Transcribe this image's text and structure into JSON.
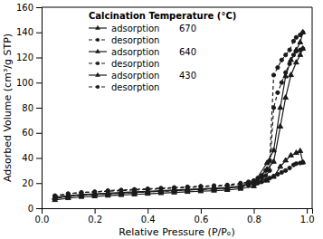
{
  "chart_data": {
    "type": "line",
    "title": "Calcination Temperature (°C)",
    "xlabel": "Relative Pressure (P/Pₒ)",
    "ylabel": "Adsorbed Volume (cm³/g STP)",
    "xlim": [
      0.0,
      1.02
    ],
    "ylim": [
      0,
      160
    ],
    "xticks": [
      {
        "value": 0.0,
        "label": "0.0"
      },
      0.2,
      0.4,
      0.6,
      0.8,
      {
        "value": 1.0,
        "label": "1.0"
      }
    ],
    "yticks": [
      0,
      20,
      40,
      60,
      80,
      100,
      120,
      140,
      160
    ],
    "grid": false,
    "legend": "upper left",
    "series": [
      {
        "name": "adsorption",
        "group": "670",
        "color": "#1a1a1a",
        "line_style": "solid",
        "marker": "triangle",
        "x": [
          0.05,
          0.1,
          0.15,
          0.2,
          0.25,
          0.3,
          0.35,
          0.4,
          0.45,
          0.5,
          0.55,
          0.6,
          0.65,
          0.7,
          0.75,
          0.8,
          0.85,
          0.875,
          0.9,
          0.92,
          0.94,
          0.96,
          0.975,
          0.985
        ],
        "values": [
          8.0,
          9.5,
          10.5,
          11.0,
          11.5,
          12.0,
          12.5,
          13.0,
          13.5,
          14.0,
          14.5,
          15.0,
          15.5,
          16.0,
          17.0,
          20.0,
          36.0,
          46.0,
          80.0,
          105.0,
          118.0,
          126.0,
          132.0,
          140.0
        ]
      },
      {
        "name": "desorption",
        "color": "#1a1a1a",
        "line_style": "dashed",
        "marker": "circle",
        "x": [
          0.985,
          0.975,
          0.96,
          0.95,
          0.935,
          0.92,
          0.905,
          0.89,
          0.875,
          0.86,
          0.845,
          0.83,
          0.815,
          0.8,
          0.78,
          0.75,
          0.7,
          0.65,
          0.6,
          0.55,
          0.5,
          0.45,
          0.4,
          0.35,
          0.3,
          0.25,
          0.2,
          0.15,
          0.1,
          0.05
        ],
        "values": [
          140.0,
          138.0,
          136.0,
          133.0,
          126.0,
          122.0,
          118.0,
          112.0,
          106.0,
          38.0,
          30.0,
          26.0,
          24.0,
          22.0,
          21.0,
          20.0,
          18.5,
          18.0,
          17.5,
          17.0,
          16.5,
          16.0,
          15.5,
          15.0,
          14.5,
          14.0,
          13.0,
          12.5,
          11.5,
          9.5
        ]
      },
      {
        "name": "adsorption",
        "group": "640",
        "color": "#1a1a1a",
        "line_style": "solid",
        "marker": "triangle",
        "x": [
          0.05,
          0.1,
          0.15,
          0.2,
          0.25,
          0.3,
          0.35,
          0.4,
          0.45,
          0.5,
          0.55,
          0.6,
          0.65,
          0.7,
          0.75,
          0.8,
          0.85,
          0.875,
          0.9,
          0.92,
          0.94,
          0.96,
          0.975,
          0.985
        ],
        "values": [
          8.5,
          10.0,
          11.0,
          11.5,
          12.0,
          12.5,
          13.0,
          13.5,
          14.0,
          14.5,
          15.0,
          15.5,
          16.0,
          16.5,
          17.5,
          21.0,
          31.0,
          37.0,
          65.0,
          88.0,
          106.0,
          116.0,
          122.0,
          127.0
        ]
      },
      {
        "name": "desorption",
        "color": "#1a1a1a",
        "line_style": "dashed",
        "marker": "circle",
        "x": [
          0.985,
          0.975,
          0.96,
          0.95,
          0.935,
          0.92,
          0.905,
          0.89,
          0.875,
          0.86,
          0.845,
          0.83,
          0.815,
          0.8,
          0.78,
          0.75,
          0.7,
          0.65,
          0.6,
          0.55,
          0.5,
          0.45,
          0.4,
          0.35,
          0.3,
          0.25,
          0.2,
          0.15,
          0.1,
          0.05
        ],
        "values": [
          127.0,
          126.0,
          125.0,
          122.0,
          115.0,
          108.0,
          100.0,
          92.0,
          80.0,
          30.0,
          26.0,
          24.0,
          22.0,
          21.0,
          20.0,
          19.0,
          18.0,
          17.5,
          17.0,
          16.5,
          16.0,
          15.5,
          15.0,
          14.5,
          14.0,
          13.5,
          13.0,
          12.5,
          11.5,
          10.0
        ]
      },
      {
        "name": "adsorption",
        "group": "430",
        "color": "#1a1a1a",
        "line_style": "solid",
        "marker": "triangle",
        "x": [
          0.05,
          0.1,
          0.15,
          0.2,
          0.25,
          0.3,
          0.35,
          0.4,
          0.45,
          0.5,
          0.55,
          0.6,
          0.65,
          0.7,
          0.75,
          0.8,
          0.85,
          0.875,
          0.9,
          0.92,
          0.94,
          0.96,
          0.975,
          0.985
        ],
        "values": [
          6.5,
          8.0,
          9.0,
          9.5,
          10.0,
          10.5,
          11.0,
          11.5,
          12.0,
          12.5,
          13.0,
          13.5,
          14.0,
          14.5,
          15.5,
          17.5,
          22.0,
          25.0,
          33.0,
          38.0,
          42.0,
          44.0,
          45.5,
          36.5
        ]
      },
      {
        "name": "desorption",
        "color": "#1a1a1a",
        "line_style": "dashed",
        "marker": "circle",
        "x": [
          0.985,
          0.975,
          0.96,
          0.95,
          0.935,
          0.92,
          0.905,
          0.89,
          0.875,
          0.86,
          0.845,
          0.83,
          0.815,
          0.8,
          0.78,
          0.75,
          0.7,
          0.65,
          0.6,
          0.55,
          0.5,
          0.45,
          0.4,
          0.35,
          0.3,
          0.25,
          0.2,
          0.15,
          0.1,
          0.05
        ],
        "values": [
          36.5,
          36.0,
          35.5,
          34.5,
          32.0,
          30.0,
          28.5,
          27.0,
          25.5,
          24.0,
          22.5,
          21.0,
          20.0,
          19.0,
          18.0,
          17.0,
          16.0,
          15.5,
          15.0,
          14.5,
          14.0,
          13.5,
          13.0,
          12.5,
          12.0,
          11.5,
          11.0,
          10.5,
          9.5,
          7.5
        ]
      }
    ]
  }
}
